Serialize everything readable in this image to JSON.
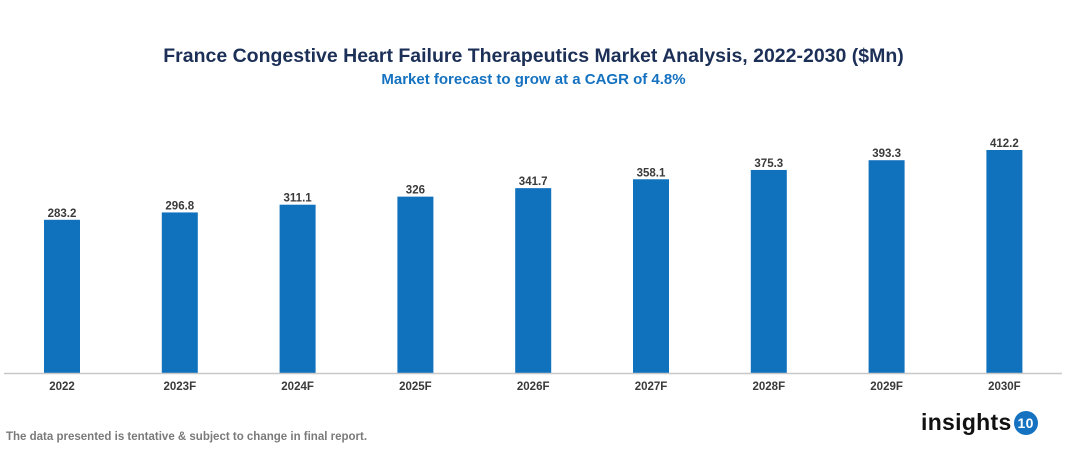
{
  "chart_data": {
    "type": "bar",
    "title": "France Congestive Heart Failure Therapeutics Market Analysis, 2022-2030 ($Mn)",
    "subtitle": "Market forecast to grow at a CAGR of 4.8%",
    "categories": [
      "2022",
      "2023F",
      "2024F",
      "2025F",
      "2026F",
      "2027F",
      "2028F",
      "2029F",
      "2030F"
    ],
    "values": [
      283.2,
      296.8,
      311.1,
      326,
      341.7,
      358.1,
      375.3,
      393.3,
      412.2
    ],
    "value_labels": [
      "283.2",
      "296.8",
      "311.1",
      "326",
      "341.7",
      "358.1",
      "375.3",
      "393.3",
      "412.2"
    ],
    "xlabel": "",
    "ylabel": "",
    "ylim": [
      0,
      412.2
    ],
    "grid": false,
    "legend": "none",
    "bar_color": "#1071bd"
  },
  "footer": {
    "note": "The data presented is tentative & subject to change in final report."
  },
  "logo": {
    "text": "insights",
    "badge": "10"
  }
}
